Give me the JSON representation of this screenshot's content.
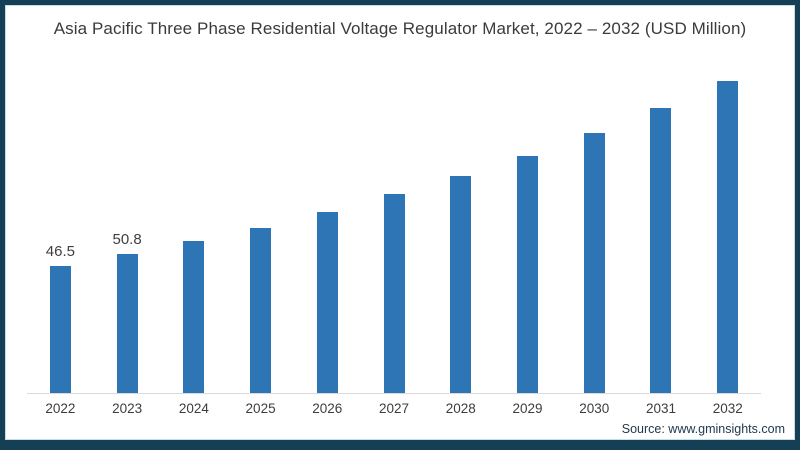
{
  "frame": {
    "border_color": "#143f54",
    "inner_line_color": "#c6dde6"
  },
  "chart_data": {
    "type": "bar",
    "title": "Asia Pacific Three Phase Residential Voltage Regulator Market, 2022 – 2032 (USD Million)",
    "categories": [
      "2022",
      "2023",
      "2024",
      "2025",
      "2026",
      "2027",
      "2028",
      "2029",
      "2030",
      "2031",
      "2032"
    ],
    "values": [
      46.5,
      50.8,
      55.6,
      60.4,
      66.2,
      72.7,
      79.4,
      86.7,
      95.1,
      104.3,
      114.1
    ],
    "data_labels": [
      "46.5",
      "50.8",
      "",
      "",
      "",
      "",
      "",
      "",
      "",
      "",
      ""
    ],
    "bar_color": "#2e75b6",
    "axis_line_color": "#d9d9d9",
    "xlabel": "",
    "ylabel": "",
    "ylim": [
      0,
      120
    ],
    "grid": false,
    "legend": "none"
  },
  "source": {
    "text": "Source: www.gminsights.com"
  }
}
